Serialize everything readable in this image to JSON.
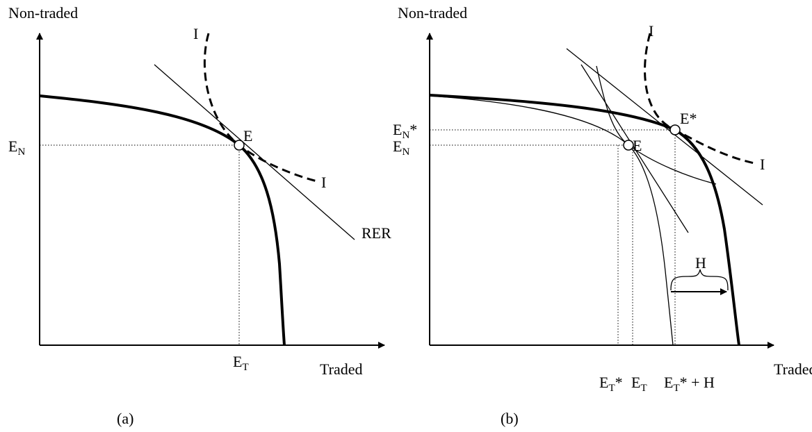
{
  "panel_a": {
    "caption": "(a)",
    "y_axis_label": "Non-traded",
    "x_axis_label": "Traded",
    "point_label": "E",
    "indifference_labels": [
      "I",
      "I"
    ],
    "line_label": "RER",
    "e_n": {
      "main": "E",
      "sub": "N"
    },
    "e_t": {
      "main": "E",
      "sub": "T"
    }
  },
  "panel_b": {
    "caption": "(b)",
    "y_axis_label": "Non-traded",
    "x_axis_label": "Traded",
    "point_label": "E",
    "point_star_label": "E*",
    "indifference_labels": [
      "I",
      "I"
    ],
    "gap_label": "H",
    "e_n_star": {
      "main": "E",
      "sub": "N",
      "rest": "*"
    },
    "e_n": {
      "main": "E",
      "sub": "N"
    },
    "e_t_star": {
      "main": "E",
      "sub": "T",
      "rest": "*"
    },
    "e_t": {
      "main": "E",
      "sub": "T"
    },
    "e_t_star_h": {
      "main": "E",
      "sub": "T",
      "rest": "* + H"
    }
  }
}
